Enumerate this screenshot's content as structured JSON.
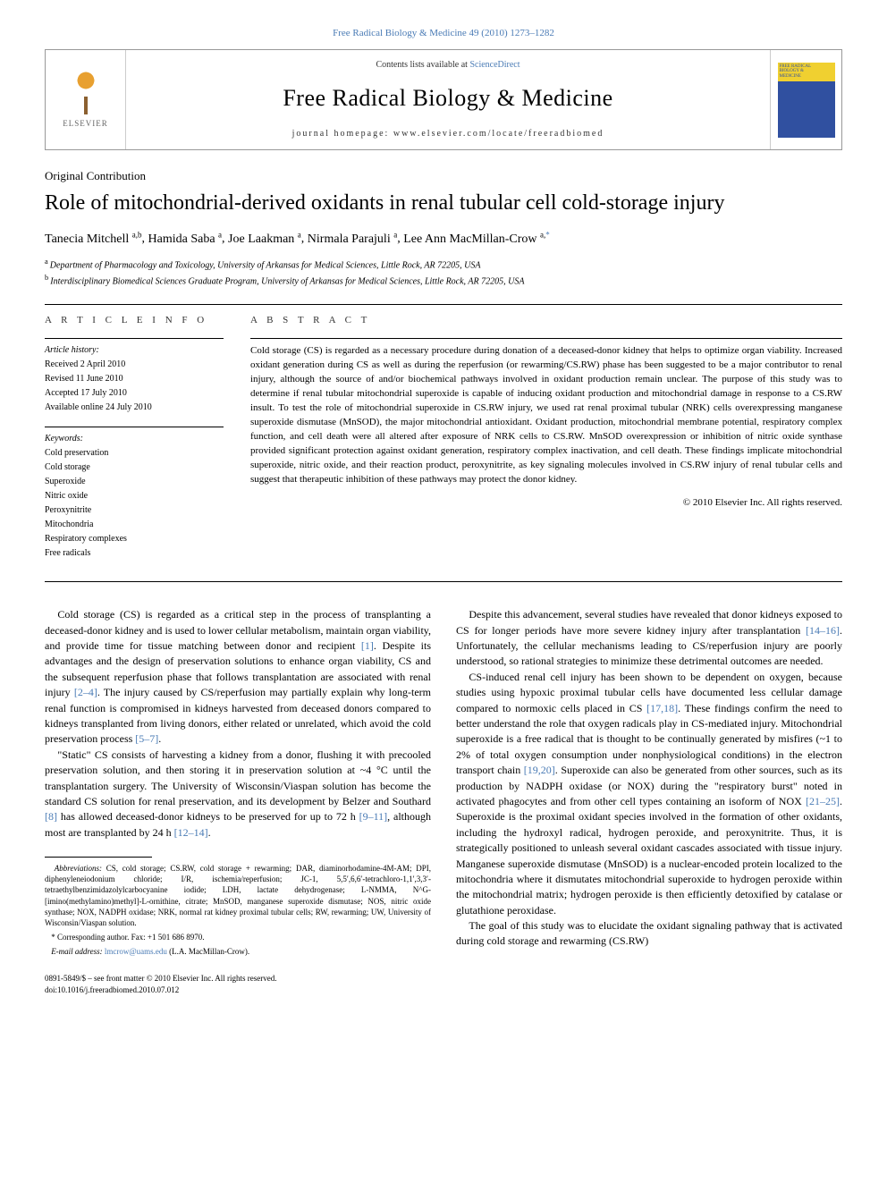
{
  "top_link": "Free Radical Biology & Medicine 49 (2010) 1273–1282",
  "header": {
    "contents_prefix": "Contents lists available at ",
    "contents_link": "ScienceDirect",
    "journal_name": "Free Radical Biology & Medicine",
    "homepage_prefix": "journal homepage: ",
    "homepage_url": "www.elsevier.com/locate/freeradbiomed",
    "elsevier_label": "ELSEVIER"
  },
  "article_type": "Original Contribution",
  "title": "Role of mitochondrial-derived oxidants in renal tubular cell cold-storage injury",
  "authors_html": "Tanecia Mitchell",
  "author_list": [
    {
      "name": "Tanecia Mitchell",
      "aff": "a,b"
    },
    {
      "name": "Hamida Saba",
      "aff": "a"
    },
    {
      "name": "Joe Laakman",
      "aff": "a"
    },
    {
      "name": "Nirmala Parajuli",
      "aff": "a"
    },
    {
      "name": "Lee Ann MacMillan-Crow",
      "aff": "a,*",
      "corr": true
    }
  ],
  "affiliations": [
    {
      "key": "a",
      "text": "Department of Pharmacology and Toxicology, University of Arkansas for Medical Sciences, Little Rock, AR 72205, USA"
    },
    {
      "key": "b",
      "text": "Interdisciplinary Biomedical Sciences Graduate Program, University of Arkansas for Medical Sciences, Little Rock, AR 72205, USA"
    }
  ],
  "info": {
    "heading": "A R T I C L E   I N F O",
    "history_label": "Article history:",
    "history": [
      "Received 2 April 2010",
      "Revised 11 June 2010",
      "Accepted 17 July 2010",
      "Available online 24 July 2010"
    ],
    "keywords_label": "Keywords:",
    "keywords": [
      "Cold preservation",
      "Cold storage",
      "Superoxide",
      "Nitric oxide",
      "Peroxynitrite",
      "Mitochondria",
      "Respiratory complexes",
      "Free radicals"
    ]
  },
  "abstract": {
    "heading": "A B S T R A C T",
    "text": "Cold storage (CS) is regarded as a necessary procedure during donation of a deceased-donor kidney that helps to optimize organ viability. Increased oxidant generation during CS as well as during the reperfusion (or rewarming/CS.RW) phase has been suggested to be a major contributor to renal injury, although the source of and/or biochemical pathways involved in oxidant production remain unclear. The purpose of this study was to determine if renal tubular mitochondrial superoxide is capable of inducing oxidant production and mitochondrial damage in response to a CS.RW insult. To test the role of mitochondrial superoxide in CS.RW injury, we used rat renal proximal tubular (NRK) cells overexpressing manganese superoxide dismutase (MnSOD), the major mitochondrial antioxidant. Oxidant production, mitochondrial membrane potential, respiratory complex function, and cell death were all altered after exposure of NRK cells to CS.RW. MnSOD overexpression or inhibition of nitric oxide synthase provided significant protection against oxidant generation, respiratory complex inactivation, and cell death. These findings implicate mitochondrial superoxide, nitric oxide, and their reaction product, peroxynitrite, as key signaling molecules involved in CS.RW injury of renal tubular cells and suggest that therapeutic inhibition of these pathways may protect the donor kidney.",
    "copyright": "© 2010 Elsevier Inc. All rights reserved."
  },
  "body": {
    "left": [
      {
        "text": "Cold storage (CS) is regarded as a critical step in the process of transplanting a deceased-donor kidney and is used to lower cellular metabolism, maintain organ viability, and provide time for tissue matching between donor and recipient ",
        "ref": "[1]",
        "tail": ". Despite its advantages and the design of preservation solutions to enhance organ viability, CS and the subsequent reperfusion phase that follows transplantation are associated with renal injury ",
        "ref2": "[2–4]",
        "tail2": ". The injury caused by CS/reperfusion may partially explain why long-term renal function is compromised in kidneys harvested from deceased donors compared to kidneys transplanted from living donors, either related or unrelated, which avoid the cold preservation process ",
        "ref3": "[5–7]",
        "tail3": "."
      },
      {
        "text": "\"Static\" CS consists of harvesting a kidney from a donor, flushing it with precooled preservation solution, and then storing it in preservation solution at ~4 °C until the transplantation surgery. The University of Wisconsin/Viaspan solution has become the standard CS solution for renal preservation, and its development by Belzer and Southard ",
        "ref": "[8]",
        "tail": " has allowed deceased-donor kidneys to be preserved for up to 72 h ",
        "ref2": "[9–11]",
        "tail2": ", although most are transplanted by 24 h ",
        "ref3": "[12–14]",
        "tail3": "."
      }
    ],
    "right": [
      {
        "text": "Despite this advancement, several studies have revealed that donor kidneys exposed to CS for longer periods have more severe kidney injury after transplantation ",
        "ref": "[14–16]",
        "tail": ". Unfortunately, the cellular mechanisms leading to CS/reperfusion injury are poorly understood, so rational strategies to minimize these detrimental outcomes are needed."
      },
      {
        "text": "CS-induced renal cell injury has been shown to be dependent on oxygen, because studies using hypoxic proximal tubular cells have documented less cellular damage compared to normoxic cells placed in CS ",
        "ref": "[17,18]",
        "tail": ". These findings confirm the need to better understand the role that oxygen radicals play in CS-mediated injury. Mitochondrial superoxide is a free radical that is thought to be continually generated by misfires (~1 to 2% of total oxygen consumption under nonphysiological conditions) in the electron transport chain ",
        "ref2": "[19,20]",
        "tail2": ". Superoxide can also be generated from other sources, such as its production by NADPH oxidase (or NOX) during the \"respiratory burst\" noted in activated phagocytes and from other cell types containing an isoform of NOX ",
        "ref3": "[21–25]",
        "tail3": ". Superoxide is the proximal oxidant species involved in the formation of other oxidants, including the hydroxyl radical, hydrogen peroxide, and peroxynitrite. Thus, it is strategically positioned to unleash several oxidant cascades associated with tissue injury. Manganese superoxide dismutase (MnSOD) is a nuclear-encoded protein localized to the mitochondria where it dismutates mitochondrial superoxide to hydrogen peroxide within the mitochondrial matrix; hydrogen peroxide is then efficiently detoxified by catalase or glutathione peroxidase."
      },
      {
        "text": "The goal of this study was to elucidate the oxidant signaling pathway that is activated during cold storage and rewarming (CS.RW)"
      }
    ]
  },
  "footnotes": {
    "abbrev_label": "Abbreviations:",
    "abbrev_text": " CS, cold storage; CS.RW, cold storage + rewarming; DAR, diaminorhodamine-4M-AM; DPI, diphenyleneiodonium chloride; I/R, ischemia/reperfusion; JC-1, 5,5′,6,6′-tetrachloro-1,1′,3,3′-tetraethylbenzimidazolylcarbocyanine iodide; LDH, lactate dehydrogenase; L-NMMA, N^G-[imino(methylamino)methyl]-L-ornithine, citrate; MnSOD, manganese superoxide dismutase; NOS, nitric oxide synthase; NOX, NADPH oxidase; NRK, normal rat kidney proximal tubular cells; RW, rewarming; UW, University of Wisconsin/Viaspan solution.",
    "corr_label": "* Corresponding author. Fax: +1 501 686 8970.",
    "email_label": "E-mail address: ",
    "email": "lmcrow@uams.edu",
    "email_tail": " (L.A. MacMillan-Crow)."
  },
  "bottom": {
    "issn_line": "0891-5849/$ – see front matter © 2010 Elsevier Inc. All rights reserved.",
    "doi_line": "doi:10.1016/j.freeradbiomed.2010.07.012"
  },
  "colors": {
    "link": "#4a7bb5",
    "text": "#000000",
    "rule": "#000000",
    "border": "#999999"
  }
}
